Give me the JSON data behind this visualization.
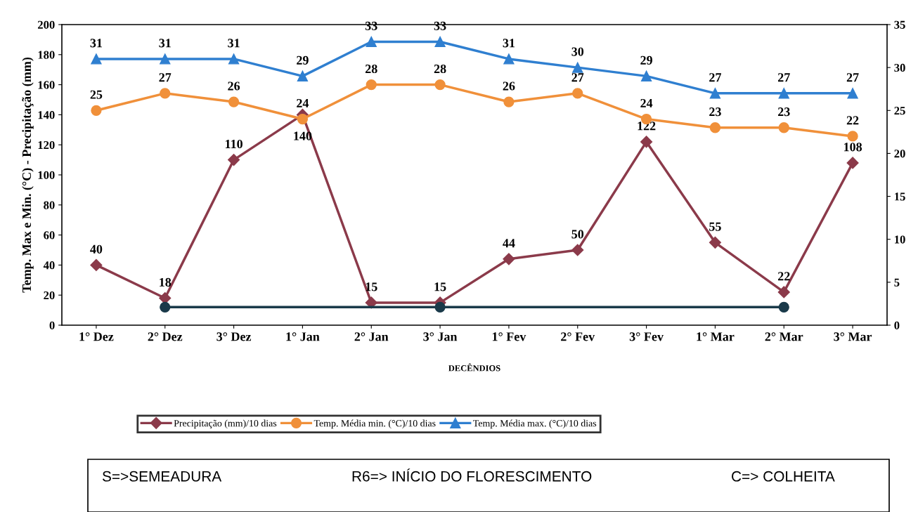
{
  "chart_data": {
    "type": "line",
    "xlabel": "DECÊNDIOS",
    "ylabel": "Temp. Max e Min. (°C) - Precipitação (mm)",
    "categories": [
      "1° Dez",
      "2° Dez",
      "3° Dez",
      "1° Jan",
      "2° Jan",
      "3° Jan",
      "1° Fev",
      "2° Fev",
      "3° Fev",
      "1° Mar",
      "2° Mar",
      "3° Mar"
    ],
    "series": [
      {
        "name": "Precipitação (mm)/10 dias",
        "color": "#8b3a4a",
        "marker": "diamond",
        "values": [
          40,
          18,
          110,
          140,
          15,
          15,
          44,
          50,
          122,
          55,
          22,
          108
        ]
      },
      {
        "name": "Temp. Média min. (°C)/10 dias",
        "color": "#f0903a",
        "marker": "circle",
        "axis": "y2",
        "values": [
          25,
          27,
          26,
          24,
          28,
          28,
          26,
          27,
          24,
          23,
          23,
          22
        ]
      },
      {
        "name": "Temp. Média max. (°C)/10 dias",
        "color": "#2f7fd0",
        "marker": "triangle",
        "axis": "y2",
        "values": [
          31,
          31,
          31,
          29,
          33,
          33,
          31,
          30,
          29,
          27,
          27,
          27
        ]
      },
      {
        "color": "#1a3a4a",
        "marker": "circle",
        "data_labels": false,
        "values": [
          null,
          12,
          null,
          null,
          null,
          12,
          null,
          null,
          null,
          null,
          12,
          null
        ]
      }
    ],
    "ylim": [
      0,
      200
    ],
    "yticks": [
      0,
      20,
      40,
      60,
      80,
      100,
      120,
      140,
      160,
      180,
      200
    ],
    "y2lim": [
      0,
      35
    ],
    "y2ticks": [
      0,
      5,
      10,
      15,
      20,
      25,
      30,
      35
    ],
    "data_labels": true,
    "grid": false,
    "legend": "bottom",
    "annotations": [
      "S=>SEMEADURA",
      "R6=> INÍCIO DO FLORESCIMENTO",
      "C=> COLHEITA"
    ]
  }
}
